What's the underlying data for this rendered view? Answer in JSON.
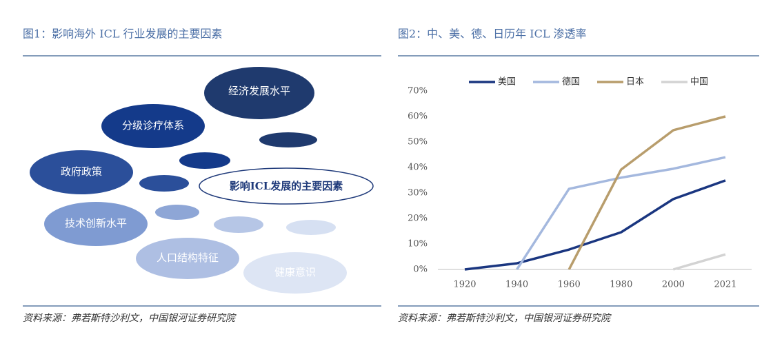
{
  "figure1": {
    "title": "图1：影响海外 ICL 行业发展的主要因素",
    "center": "影响ICL发展的主要因素",
    "nodes": [
      {
        "label": "经济发展水平"
      },
      {
        "label": "分级诊疗体系"
      },
      {
        "label": "政府政策"
      },
      {
        "label": "技术创新水平"
      },
      {
        "label": "人口结构特征"
      },
      {
        "label": "健康意识"
      }
    ],
    "source": "资料来源：弗若斯特沙利文，中国银河证券研究院"
  },
  "figure2": {
    "title": "图2：中、美、德、日历年 ICL 渗透率",
    "source": "资料来源：弗若斯特沙利文，中国银河证券研究院"
  },
  "chart_data": {
    "type": "line",
    "categories": [
      "1920",
      "1940",
      "1960",
      "1980",
      "2000",
      "2021"
    ],
    "series": [
      {
        "name": "美国",
        "color": "#1a3680",
        "values": [
          0,
          2.4,
          7.8,
          14.6,
          27.6,
          34.9
        ]
      },
      {
        "name": "德国",
        "color": "#a4b8de",
        "values": [
          null,
          0,
          31.6,
          36,
          39.5,
          44
        ]
      },
      {
        "name": "日本",
        "color": "#b89d6c",
        "values": [
          null,
          null,
          0,
          39.2,
          54.6,
          60
        ]
      },
      {
        "name": "中国",
        "color": "#d3d3d3",
        "values": [
          null,
          null,
          null,
          null,
          0,
          5.9
        ]
      }
    ],
    "ylim": [
      0,
      70
    ],
    "yticks": [
      {
        "value": 0,
        "label": "0%"
      },
      {
        "value": 10,
        "label": "10%"
      },
      {
        "value": 20,
        "label": "20%"
      },
      {
        "value": 30,
        "label": "30%"
      },
      {
        "value": 40,
        "label": "40%"
      },
      {
        "value": 50,
        "label": "50%"
      },
      {
        "value": 60,
        "label": "60%"
      },
      {
        "value": 70,
        "label": "70%"
      }
    ],
    "legend": "top"
  }
}
